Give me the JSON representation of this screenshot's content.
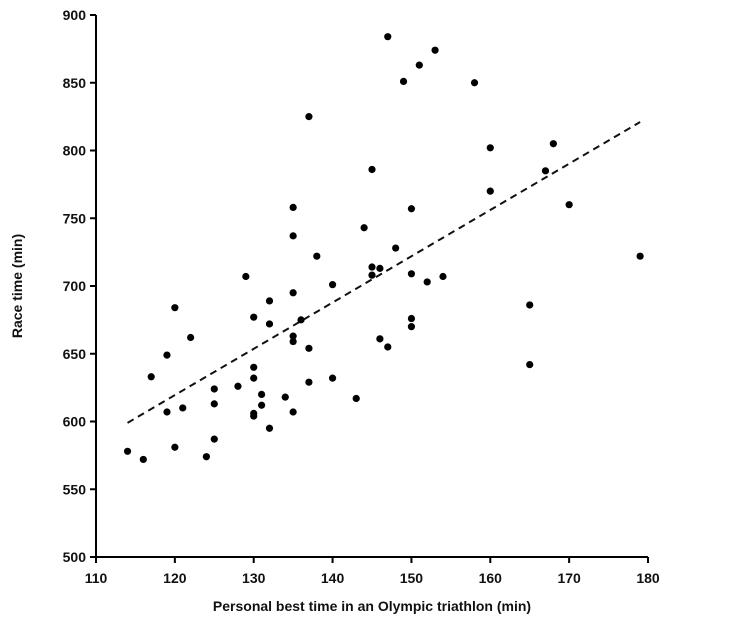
{
  "chart_data": {
    "type": "scatter",
    "title": "",
    "xlabel": "Personal best time in an Olympic triathlon (min)",
    "ylabel": "Race time (min)",
    "xlim": [
      110,
      180
    ],
    "ylim": [
      500,
      900
    ],
    "xticks": [
      110,
      120,
      130,
      140,
      150,
      160,
      170,
      180
    ],
    "yticks": [
      500,
      550,
      600,
      650,
      700,
      750,
      800,
      850,
      900
    ],
    "grid": false,
    "legend": "none",
    "series": [
      {
        "marker_color": "#000000",
        "points": [
          [
            114,
            578
          ],
          [
            116,
            572
          ],
          [
            117,
            633
          ],
          [
            119,
            649
          ],
          [
            119,
            607
          ],
          [
            120,
            684
          ],
          [
            120,
            581
          ],
          [
            121,
            610
          ],
          [
            122,
            662
          ],
          [
            124,
            574
          ],
          [
            125,
            624
          ],
          [
            125,
            613
          ],
          [
            125,
            587
          ],
          [
            128,
            626
          ],
          [
            129,
            707
          ],
          [
            130,
            677
          ],
          [
            130,
            640
          ],
          [
            130,
            632
          ],
          [
            130,
            606
          ],
          [
            130,
            604
          ],
          [
            131,
            620
          ],
          [
            131,
            612
          ],
          [
            132,
            689
          ],
          [
            132,
            672
          ],
          [
            132,
            595
          ],
          [
            134,
            618
          ],
          [
            135,
            758
          ],
          [
            135,
            737
          ],
          [
            135,
            695
          ],
          [
            135,
            663
          ],
          [
            135,
            659
          ],
          [
            135,
            607
          ],
          [
            136,
            675
          ],
          [
            137,
            825
          ],
          [
            137,
            654
          ],
          [
            137,
            629
          ],
          [
            138,
            722
          ],
          [
            140,
            701
          ],
          [
            140,
            632
          ],
          [
            143,
            617
          ],
          [
            144,
            743
          ],
          [
            145,
            786
          ],
          [
            145,
            714
          ],
          [
            145,
            708
          ],
          [
            146,
            713
          ],
          [
            146,
            661
          ],
          [
            147,
            884
          ],
          [
            147,
            655
          ],
          [
            148,
            728
          ],
          [
            149,
            851
          ],
          [
            150,
            757
          ],
          [
            150,
            709
          ],
          [
            150,
            676
          ],
          [
            150,
            670
          ],
          [
            151,
            863
          ],
          [
            152,
            703
          ],
          [
            153,
            874
          ],
          [
            154,
            707
          ],
          [
            158,
            850
          ],
          [
            160,
            802
          ],
          [
            160,
            770
          ],
          [
            165,
            686
          ],
          [
            165,
            642
          ],
          [
            167,
            785
          ],
          [
            168,
            805
          ],
          [
            170,
            760
          ],
          [
            179,
            722
          ]
        ]
      }
    ],
    "trendline": {
      "style": "dashed",
      "x": [
        114,
        179
      ],
      "y": [
        599,
        821
      ]
    }
  }
}
